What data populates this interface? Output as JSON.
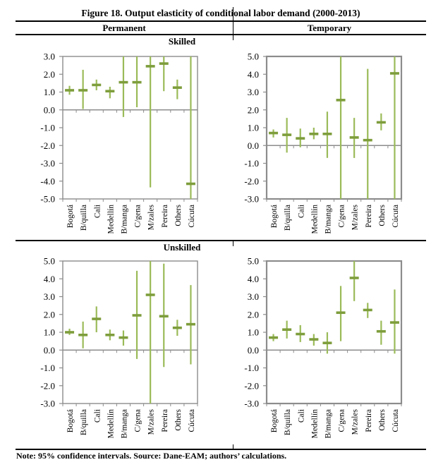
{
  "figure": {
    "title": "Figure 18. Output elasticity of conditional labor demand (2000-2013)",
    "columns": {
      "permanent": "Permanent",
      "temporary": "Temporary"
    },
    "rows": {
      "skilled": "Skilled",
      "unskilled": "Unskilled"
    },
    "note": "Note: 95% confidence intervals. Source: Dane-EAM; authors’ calculations."
  },
  "colors": {
    "ci_line": "#9bbb59",
    "point_dash": "#7e9d3c",
    "axis": "#8c8c8c",
    "rule": "#000000",
    "text": "#000000",
    "background": "#ffffff"
  },
  "categories": [
    "Bogotá",
    "B/quilla",
    "Cali",
    "Medellín",
    "B/manga",
    "C/gena",
    "M/zales",
    "Pereira",
    "Others",
    "Cúcuta"
  ],
  "chart_data": [
    {
      "id": "permanent-skilled",
      "panel_column": "Permanent",
      "panel_row": "Skilled",
      "type": "scatter",
      "style": "point-estimate-with-95ci-errorbars",
      "grid": false,
      "legend": "none",
      "ylim": [
        -5,
        3
      ],
      "ytick_step": 1,
      "ci_values_clipped_to_ylim": true,
      "points": [
        {
          "city": "Bogotá",
          "estimate": 1.1,
          "ci_low": 0.85,
          "ci_high": 1.35
        },
        {
          "city": "B/quilla",
          "estimate": 1.1,
          "ci_low": 0.05,
          "ci_high": 2.25
        },
        {
          "city": "Cali",
          "estimate": 1.4,
          "ci_low": 1.1,
          "ci_high": 1.7
        },
        {
          "city": "Medellín",
          "estimate": 1.05,
          "ci_low": 0.65,
          "ci_high": 1.3
        },
        {
          "city": "B/manga",
          "estimate": 1.55,
          "ci_low": -0.4,
          "ci_high": 3.0
        },
        {
          "city": "C/gena",
          "estimate": 1.55,
          "ci_low": 0.15,
          "ci_high": 3.0
        },
        {
          "city": "M/zales",
          "estimate": 2.45,
          "ci_low": -4.35,
          "ci_high": 3.0
        },
        {
          "city": "Pereira",
          "estimate": 2.6,
          "ci_low": 1.05,
          "ci_high": 3.0
        },
        {
          "city": "Others",
          "estimate": 1.25,
          "ci_low": 0.6,
          "ci_high": 1.7
        },
        {
          "city": "Cúcuta",
          "estimate": -4.15,
          "ci_low": -5.0,
          "ci_high": 3.0
        }
      ]
    },
    {
      "id": "temporary-skilled",
      "panel_column": "Temporary",
      "panel_row": "Skilled",
      "type": "scatter",
      "style": "point-estimate-with-95ci-errorbars",
      "grid": false,
      "legend": "none",
      "ylim": [
        -3,
        5
      ],
      "ytick_step": 1,
      "ci_values_clipped_to_ylim": true,
      "points": [
        {
          "city": "Bogotá",
          "estimate": 0.7,
          "ci_low": 0.45,
          "ci_high": 0.9
        },
        {
          "city": "B/quilla",
          "estimate": 0.6,
          "ci_low": -0.4,
          "ci_high": 1.55
        },
        {
          "city": "Cali",
          "estimate": 0.4,
          "ci_low": -0.1,
          "ci_high": 0.95
        },
        {
          "city": "Medellín",
          "estimate": 0.65,
          "ci_low": 0.35,
          "ci_high": 1.0
        },
        {
          "city": "B/manga",
          "estimate": 0.65,
          "ci_low": -0.7,
          "ci_high": 1.9
        },
        {
          "city": "C/gena",
          "estimate": 2.55,
          "ci_low": -3.0,
          "ci_high": 5.0
        },
        {
          "city": "M/zales",
          "estimate": 0.45,
          "ci_low": -0.7,
          "ci_high": 1.55
        },
        {
          "city": "Pereira",
          "estimate": 0.3,
          "ci_low": -3.0,
          "ci_high": 4.3
        },
        {
          "city": "Others",
          "estimate": 1.3,
          "ci_low": 0.85,
          "ci_high": 1.8
        },
        {
          "city": "Cúcuta",
          "estimate": 4.05,
          "ci_low": -3.0,
          "ci_high": 5.0
        }
      ]
    },
    {
      "id": "permanent-unskilled",
      "panel_column": "Permanent",
      "panel_row": "Unskilled",
      "type": "scatter",
      "style": "point-estimate-with-95ci-errorbars",
      "grid": false,
      "legend": "none",
      "ylim": [
        -3,
        5
      ],
      "ytick_step": 1,
      "ci_values_clipped_to_ylim": true,
      "points": [
        {
          "city": "Bogotá",
          "estimate": 1.0,
          "ci_low": 0.85,
          "ci_high": 1.2
        },
        {
          "city": "B/quilla",
          "estimate": 0.85,
          "ci_low": 0.1,
          "ci_high": 1.6
        },
        {
          "city": "Cali",
          "estimate": 1.75,
          "ci_low": 1.0,
          "ci_high": 2.45
        },
        {
          "city": "Medellín",
          "estimate": 0.85,
          "ci_low": 0.55,
          "ci_high": 1.15
        },
        {
          "city": "B/manga",
          "estimate": 0.7,
          "ci_low": 0.25,
          "ci_high": 1.1
        },
        {
          "city": "C/gena",
          "estimate": 1.95,
          "ci_low": -0.5,
          "ci_high": 4.45
        },
        {
          "city": "M/zales",
          "estimate": 3.1,
          "ci_low": -3.0,
          "ci_high": 5.0
        },
        {
          "city": "Pereira",
          "estimate": 1.9,
          "ci_low": -0.95,
          "ci_high": 4.85
        },
        {
          "city": "Others",
          "estimate": 1.25,
          "ci_low": 0.8,
          "ci_high": 1.7
        },
        {
          "city": "Cúcuta",
          "estimate": 1.45,
          "ci_low": -0.8,
          "ci_high": 3.65
        }
      ]
    },
    {
      "id": "temporary-unskilled",
      "panel_column": "Temporary",
      "panel_row": "Unskilled",
      "type": "scatter",
      "style": "point-estimate-with-95ci-errorbars",
      "grid": false,
      "legend": "none",
      "ylim": [
        -3,
        5
      ],
      "ytick_step": 1,
      "ci_values_clipped_to_ylim": true,
      "points": [
        {
          "city": "Bogotá",
          "estimate": 0.7,
          "ci_low": 0.5,
          "ci_high": 0.9
        },
        {
          "city": "B/quilla",
          "estimate": 1.15,
          "ci_low": 0.65,
          "ci_high": 1.65
        },
        {
          "city": "Cali",
          "estimate": 0.9,
          "ci_low": 0.45,
          "ci_high": 1.4
        },
        {
          "city": "Medellín",
          "estimate": 0.6,
          "ci_low": 0.25,
          "ci_high": 0.9
        },
        {
          "city": "B/manga",
          "estimate": 0.4,
          "ci_low": -0.2,
          "ci_high": 1.0
        },
        {
          "city": "C/gena",
          "estimate": 2.1,
          "ci_low": 0.5,
          "ci_high": 3.6
        },
        {
          "city": "M/zales",
          "estimate": 4.05,
          "ci_low": 2.75,
          "ci_high": 5.0
        },
        {
          "city": "Pereira",
          "estimate": 2.25,
          "ci_low": 1.8,
          "ci_high": 2.65
        },
        {
          "city": "Others",
          "estimate": 1.05,
          "ci_low": 0.3,
          "ci_high": 1.65
        },
        {
          "city": "Cúcuta",
          "estimate": 1.55,
          "ci_low": -0.2,
          "ci_high": 3.4
        }
      ]
    }
  ]
}
